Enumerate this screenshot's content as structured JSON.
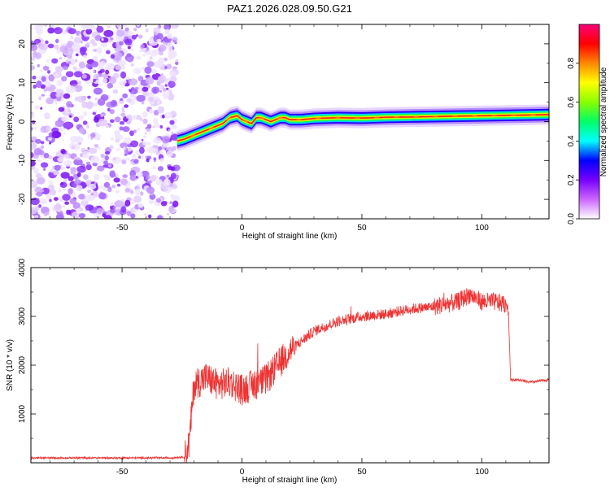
{
  "title": "PAZ1.2026.028.09.50.G21",
  "chart_data": [
    {
      "type": "heatmap",
      "xlabel": "Height of straight line (km)",
      "ylabel": "Frequency (Hz)",
      "xlim": [
        -88,
        128
      ],
      "ylim": [
        -25,
        25
      ],
      "x_ticks": [
        -50,
        0,
        50,
        100
      ],
      "y_ticks": [
        -20,
        -10,
        0,
        10,
        20
      ],
      "colorbar": {
        "label": "Normalized spectral amplitude",
        "range": [
          0,
          1
        ],
        "ticks": [
          "0.0",
          "0.2",
          "0.4",
          "0.6",
          "0.8"
        ],
        "colors": [
          "#ffffff",
          "#cc66ff",
          "#7700ff",
          "#0000ff",
          "#00ffff",
          "#00ff66",
          "#88ff00",
          "#ffff00",
          "#ff8800",
          "#ff0000",
          "#ff0077"
        ]
      },
      "noise_region": {
        "x": [
          -88,
          -27
        ],
        "y": [
          -25,
          25
        ]
      },
      "ridge": {
        "x": [
          -27,
          -24,
          -20,
          -16,
          -12,
          -8,
          -5,
          -2,
          0,
          2,
          4,
          6,
          8,
          10,
          12,
          14,
          16,
          18,
          20,
          25,
          30,
          40,
          50,
          60,
          70,
          80,
          90,
          100,
          110,
          120,
          128
        ],
        "y": [
          -5,
          -4.5,
          -3.5,
          -2.5,
          -1.5,
          -0.5,
          1,
          1.5,
          0.5,
          0,
          -0.5,
          1,
          1,
          0.5,
          0,
          0.5,
          1,
          1,
          0.5,
          0.5,
          0.8,
          1.0,
          0.9,
          1.1,
          1.2,
          1.3,
          1.4,
          1.5,
          1.6,
          1.7,
          1.8
        ]
      }
    },
    {
      "type": "line",
      "xlabel": "Height of straight line (km)",
      "ylabel": "SNR (10 * v/v)",
      "xlim": [
        -88,
        128
      ],
      "ylim": [
        0,
        4000
      ],
      "x_ticks": [
        -50,
        0,
        50,
        100
      ],
      "y_ticks": [
        1000,
        2000,
        3000,
        4000
      ],
      "series_color": "#ee3333",
      "x": [
        -88,
        -80,
        -70,
        -60,
        -50,
        -40,
        -30,
        -24,
        -22,
        -20,
        -15,
        -10,
        -5,
        0,
        5,
        10,
        15,
        20,
        25,
        30,
        40,
        50,
        60,
        70,
        80,
        90,
        95,
        100,
        105,
        110,
        111,
        112,
        115,
        120,
        128
      ],
      "y": [
        100,
        100,
        100,
        100,
        100,
        100,
        100,
        120,
        400,
        1600,
        1750,
        1600,
        1650,
        1500,
        1600,
        1700,
        2000,
        2300,
        2500,
        2700,
        2900,
        3000,
        3050,
        3150,
        3200,
        3300,
        3450,
        3300,
        3300,
        3250,
        3200,
        1700,
        1700,
        1650,
        1700
      ]
    }
  ]
}
